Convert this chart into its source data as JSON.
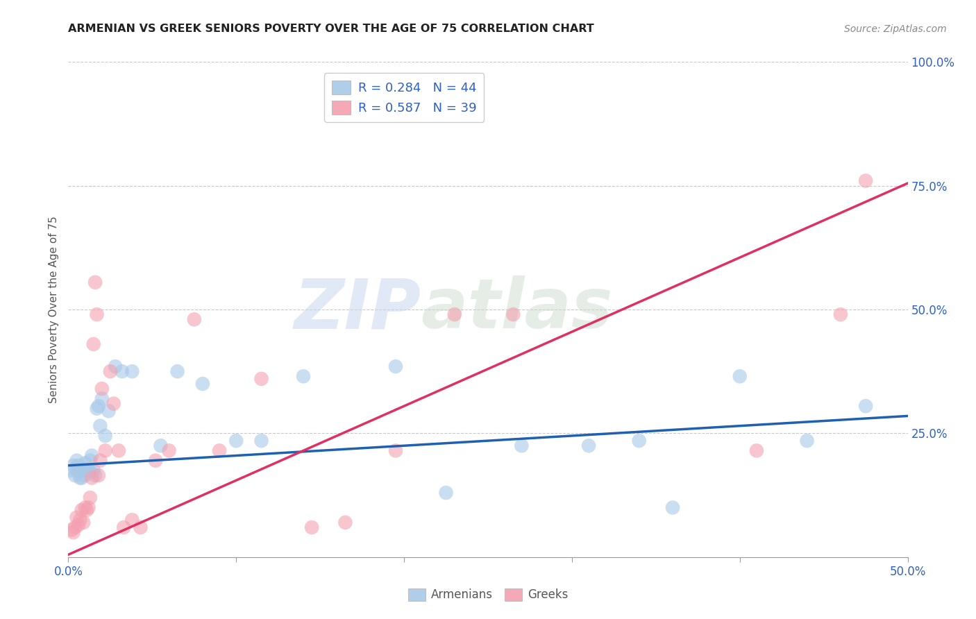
{
  "title": "ARMENIAN VS GREEK SENIORS POVERTY OVER THE AGE OF 75 CORRELATION CHART",
  "source": "Source: ZipAtlas.com",
  "ylabel": "Seniors Poverty Over the Age of 75",
  "xlim": [
    0.0,
    0.5
  ],
  "ylim": [
    0.0,
    1.0
  ],
  "armenian_R": 0.284,
  "armenian_N": 44,
  "greek_R": 0.587,
  "greek_N": 39,
  "armenian_color": "#a8c8e8",
  "greek_color": "#f4a0b0",
  "armenian_line_color": "#2060b0",
  "greek_line_color": "#e03060",
  "legend_text_color": "#3060c0",
  "watermark_zip": "ZIP",
  "watermark_atlas": "atlas",
  "armenian_x": [
    0.002,
    0.003,
    0.004,
    0.005,
    0.005,
    0.006,
    0.006,
    0.007,
    0.008,
    0.008,
    0.009,
    0.01,
    0.01,
    0.011,
    0.012,
    0.013,
    0.013,
    0.014,
    0.015,
    0.016,
    0.017,
    0.018,
    0.019,
    0.02,
    0.022,
    0.024,
    0.028,
    0.032,
    0.038,
    0.055,
    0.065,
    0.08,
    0.1,
    0.115,
    0.14,
    0.195,
    0.225,
    0.27,
    0.31,
    0.34,
    0.36,
    0.4,
    0.44,
    0.475
  ],
  "armenian_y": [
    0.175,
    0.185,
    0.165,
    0.195,
    0.175,
    0.175,
    0.185,
    0.16,
    0.16,
    0.175,
    0.175,
    0.165,
    0.19,
    0.175,
    0.175,
    0.175,
    0.195,
    0.205,
    0.175,
    0.165,
    0.3,
    0.305,
    0.265,
    0.32,
    0.245,
    0.295,
    0.385,
    0.375,
    0.375,
    0.225,
    0.375,
    0.35,
    0.235,
    0.235,
    0.365,
    0.385,
    0.13,
    0.225,
    0.225,
    0.235,
    0.1,
    0.365,
    0.235,
    0.305
  ],
  "greek_x": [
    0.002,
    0.003,
    0.004,
    0.005,
    0.006,
    0.007,
    0.008,
    0.009,
    0.01,
    0.011,
    0.012,
    0.013,
    0.014,
    0.015,
    0.016,
    0.017,
    0.018,
    0.019,
    0.02,
    0.022,
    0.025,
    0.027,
    0.03,
    0.033,
    0.038,
    0.043,
    0.052,
    0.06,
    0.075,
    0.09,
    0.115,
    0.145,
    0.165,
    0.195,
    0.23,
    0.265,
    0.41,
    0.46,
    0.475
  ],
  "greek_y": [
    0.055,
    0.05,
    0.06,
    0.08,
    0.065,
    0.075,
    0.095,
    0.07,
    0.1,
    0.095,
    0.1,
    0.12,
    0.16,
    0.43,
    0.555,
    0.49,
    0.165,
    0.195,
    0.34,
    0.215,
    0.375,
    0.31,
    0.215,
    0.06,
    0.075,
    0.06,
    0.195,
    0.215,
    0.48,
    0.215,
    0.36,
    0.06,
    0.07,
    0.215,
    0.49,
    0.49,
    0.215,
    0.49,
    0.76
  ],
  "armenian_trend": [
    0.185,
    0.285
  ],
  "greek_trend": [
    0.005,
    0.755
  ],
  "background_color": "#ffffff",
  "grid_color": "#c8c8c8"
}
